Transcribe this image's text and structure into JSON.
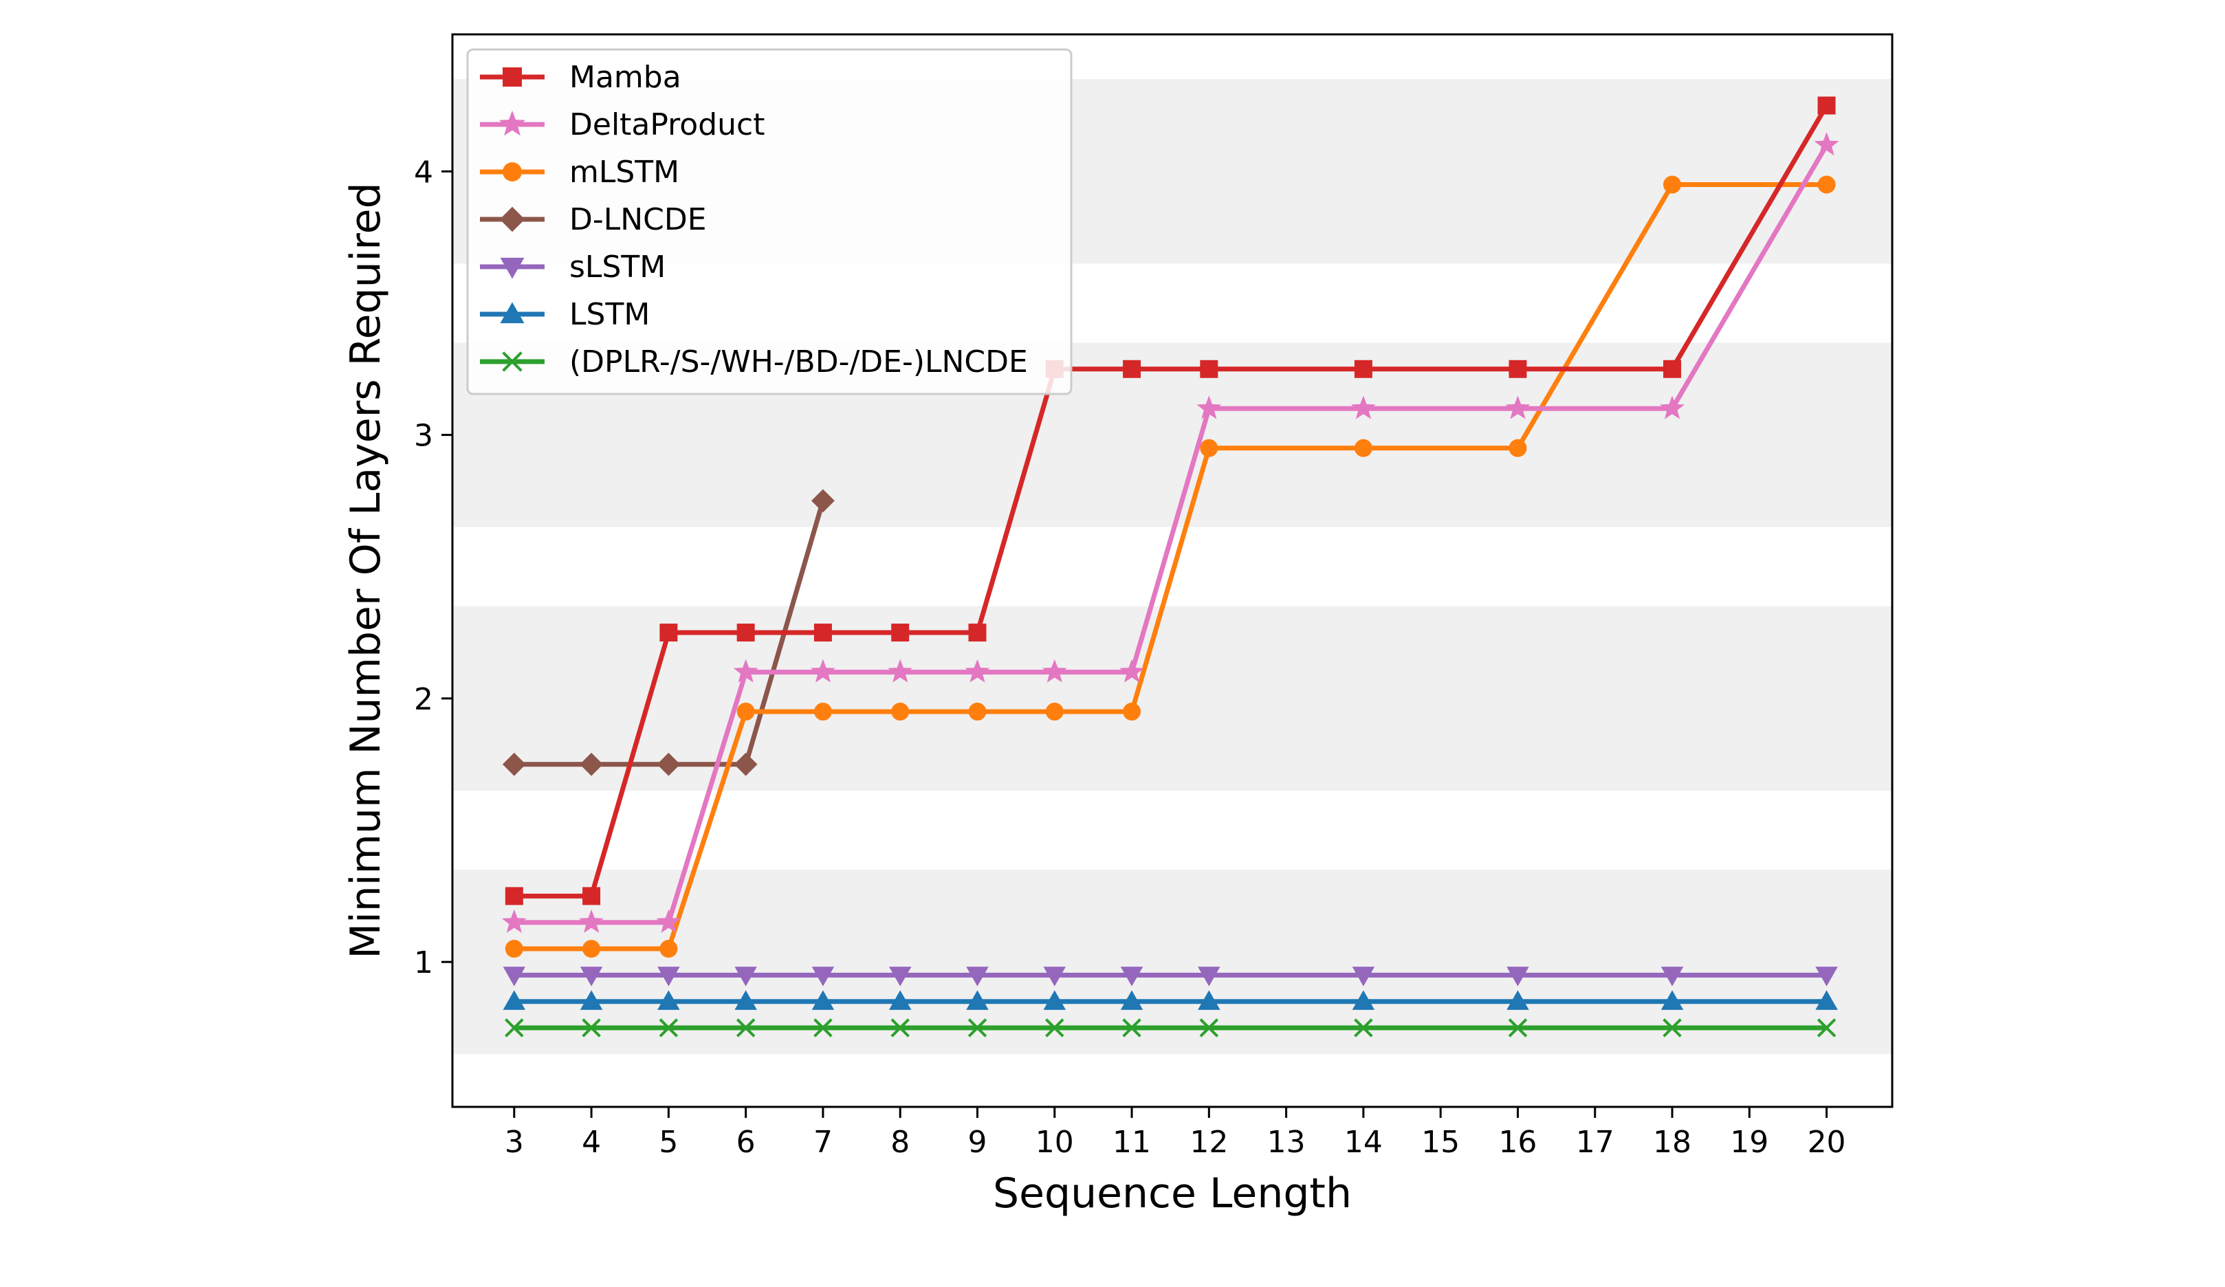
{
  "chart_data": {
    "type": "line",
    "xlabel": "Sequence Length",
    "ylabel": "Minimum Number Of Layers Required",
    "xlim": [
      2.2,
      20.85
    ],
    "ylim": [
      0.45,
      4.52
    ],
    "xticks": [
      3,
      4,
      5,
      6,
      7,
      8,
      9,
      10,
      11,
      12,
      13,
      14,
      15,
      16,
      17,
      18,
      19,
      20
    ],
    "yticks": [
      1,
      2,
      3,
      4
    ],
    "legend_position": "top-left",
    "bands": [
      [
        0.65,
        1.35
      ],
      [
        1.65,
        2.35
      ],
      [
        2.65,
        3.35
      ],
      [
        3.65,
        4.35
      ]
    ],
    "band_color": "#f0f0f0",
    "series": [
      {
        "name": "Mamba",
        "color": "#d62728",
        "marker": "square",
        "x": [
          3,
          4,
          5,
          6,
          7,
          8,
          9,
          10,
          11,
          12,
          14,
          16,
          18,
          20
        ],
        "y": [
          1.25,
          1.25,
          2.25,
          2.25,
          2.25,
          2.25,
          2.25,
          3.25,
          3.25,
          3.25,
          3.25,
          3.25,
          3.25,
          4.25
        ]
      },
      {
        "name": "DeltaProduct",
        "color": "#e377c2",
        "marker": "star",
        "x": [
          3,
          4,
          5,
          6,
          7,
          8,
          9,
          10,
          11,
          12,
          14,
          16,
          18,
          20
        ],
        "y": [
          1.15,
          1.15,
          1.15,
          2.1,
          2.1,
          2.1,
          2.1,
          2.1,
          2.1,
          3.1,
          3.1,
          3.1,
          3.1,
          4.1
        ]
      },
      {
        "name": "mLSTM",
        "color": "#ff7f0e",
        "marker": "circle",
        "x": [
          3,
          4,
          5,
          6,
          7,
          8,
          9,
          10,
          11,
          12,
          14,
          16,
          18,
          20
        ],
        "y": [
          1.05,
          1.05,
          1.05,
          1.95,
          1.95,
          1.95,
          1.95,
          1.95,
          1.95,
          2.95,
          2.95,
          2.95,
          3.95,
          3.95
        ]
      },
      {
        "name": "D-LNCDE",
        "color": "#8c564b",
        "marker": "diamond",
        "x": [
          3,
          4,
          5,
          6,
          7
        ],
        "y": [
          1.75,
          1.75,
          1.75,
          1.75,
          2.75
        ]
      },
      {
        "name": "sLSTM",
        "color": "#9467bd",
        "marker": "triangle-down",
        "x": [
          3,
          4,
          5,
          6,
          7,
          8,
          9,
          10,
          11,
          12,
          14,
          16,
          18,
          20
        ],
        "y": [
          0.95,
          0.95,
          0.95,
          0.95,
          0.95,
          0.95,
          0.95,
          0.95,
          0.95,
          0.95,
          0.95,
          0.95,
          0.95,
          0.95
        ]
      },
      {
        "name": "LSTM",
        "color": "#1f77b4",
        "marker": "triangle-up",
        "x": [
          3,
          4,
          5,
          6,
          7,
          8,
          9,
          10,
          11,
          12,
          14,
          16,
          18,
          20
        ],
        "y": [
          0.85,
          0.85,
          0.85,
          0.85,
          0.85,
          0.85,
          0.85,
          0.85,
          0.85,
          0.85,
          0.85,
          0.85,
          0.85,
          0.85
        ]
      },
      {
        "name": "(DPLR-/S-/WH-/BD-/DE-)LNCDE",
        "color": "#2ca02c",
        "marker": "x",
        "x": [
          3,
          4,
          5,
          6,
          7,
          8,
          9,
          10,
          11,
          12,
          14,
          16,
          18,
          20
        ],
        "y": [
          0.75,
          0.75,
          0.75,
          0.75,
          0.75,
          0.75,
          0.75,
          0.75,
          0.75,
          0.75,
          0.75,
          0.75,
          0.75,
          0.75
        ]
      }
    ]
  }
}
